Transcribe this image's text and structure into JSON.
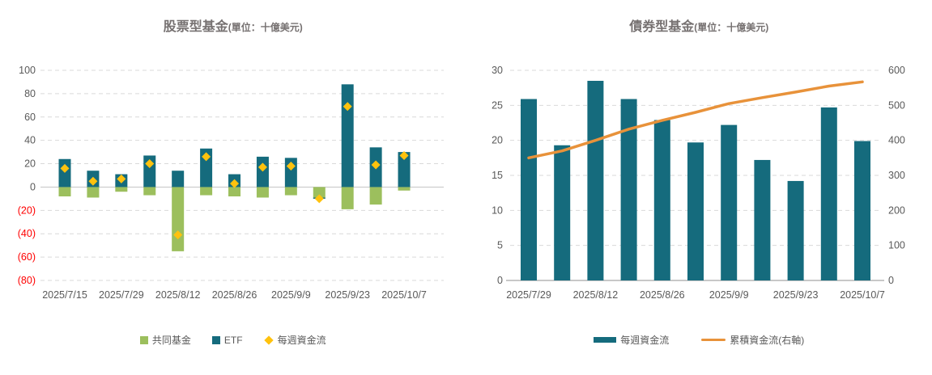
{
  "colors": {
    "teal": "#156B7D",
    "green": "#9CBF5D",
    "yellow": "#FFC20E",
    "orange": "#E8923A",
    "axis_text": "#595959",
    "negative_text": "#FF0000",
    "gridline": "#D9D9D9",
    "zero_line": "#C6C6C6",
    "axis_line": "#A6A6A6",
    "title_text": "#767171"
  },
  "left_panel": {
    "title": "股票型基金",
    "unit": "(單位：十億美元)",
    "legend": {
      "mutual_fund": "共同基金",
      "etf": "ETF",
      "weekly_flow": "每週資金流"
    }
  },
  "right_panel": {
    "title": "債券型基金",
    "unit": "(單位：十億美元)",
    "legend": {
      "weekly_flow": "每週資金流",
      "cumulative_flow": "累積資金流(右軸)"
    }
  },
  "chart_data": [
    {
      "type": "bar",
      "title": "股票型基金",
      "subtitle": "(單位：十億美元)",
      "tick_labels": [
        "2025/7/15",
        "",
        "2025/7/29",
        "",
        "2025/8/12",
        "",
        "2025/8/26",
        "",
        "2025/9/9",
        "",
        "2025/9/23",
        "",
        "2025/10/7"
      ],
      "series": [
        {
          "name": "共同基金",
          "type": "bar-stacked",
          "color_key": "green",
          "values": [
            -8,
            -9,
            -4,
            -7,
            -55,
            -7,
            -8,
            -9,
            -7,
            -9,
            -19,
            -15,
            -3
          ]
        },
        {
          "name": "ETF",
          "type": "bar-stacked",
          "color_key": "teal",
          "values": [
            24,
            14,
            11,
            27,
            14,
            33,
            11,
            26,
            25,
            -1,
            88,
            34,
            30
          ]
        },
        {
          "name": "每週資金流",
          "type": "scatter-diamond",
          "color_key": "yellow",
          "values": [
            16,
            5,
            7,
            20,
            -41,
            26,
            3,
            17,
            18,
            -10,
            69,
            19,
            27
          ]
        }
      ],
      "ylim": [
        -80,
        100
      ],
      "ytick_step": 20,
      "negative_tick_format": "parentheses-red",
      "grid": "dashed-horizontal",
      "legend_position": "bottom"
    },
    {
      "type": "bar+line",
      "title": "債券型基金",
      "subtitle": "(單位：十億美元)",
      "tick_labels": [
        "2025/7/29",
        "",
        "2025/8/12",
        "",
        "2025/8/26",
        "",
        "2025/9/9",
        "",
        "2025/9/23",
        "",
        "2025/10/7"
      ],
      "series": [
        {
          "name": "每週資金流",
          "type": "bar",
          "axis": "left",
          "color_key": "teal",
          "values": [
            25.9,
            19.3,
            28.5,
            25.9,
            22.9,
            19.7,
            22.2,
            17.2,
            14.2,
            24.7,
            19.9
          ]
        },
        {
          "name": "累積資金流(右軸)",
          "type": "line",
          "axis": "right",
          "color_key": "orange",
          "values": [
            350,
            370,
            400,
            432,
            457,
            480,
            505,
            522,
            538,
            555,
            567
          ]
        }
      ],
      "ylim_left": [
        0,
        30
      ],
      "ytick_step_left": 5,
      "ylim_right": [
        0,
        600
      ],
      "ytick_step_right": 100,
      "grid": "dashed-horizontal",
      "legend_position": "bottom"
    }
  ]
}
